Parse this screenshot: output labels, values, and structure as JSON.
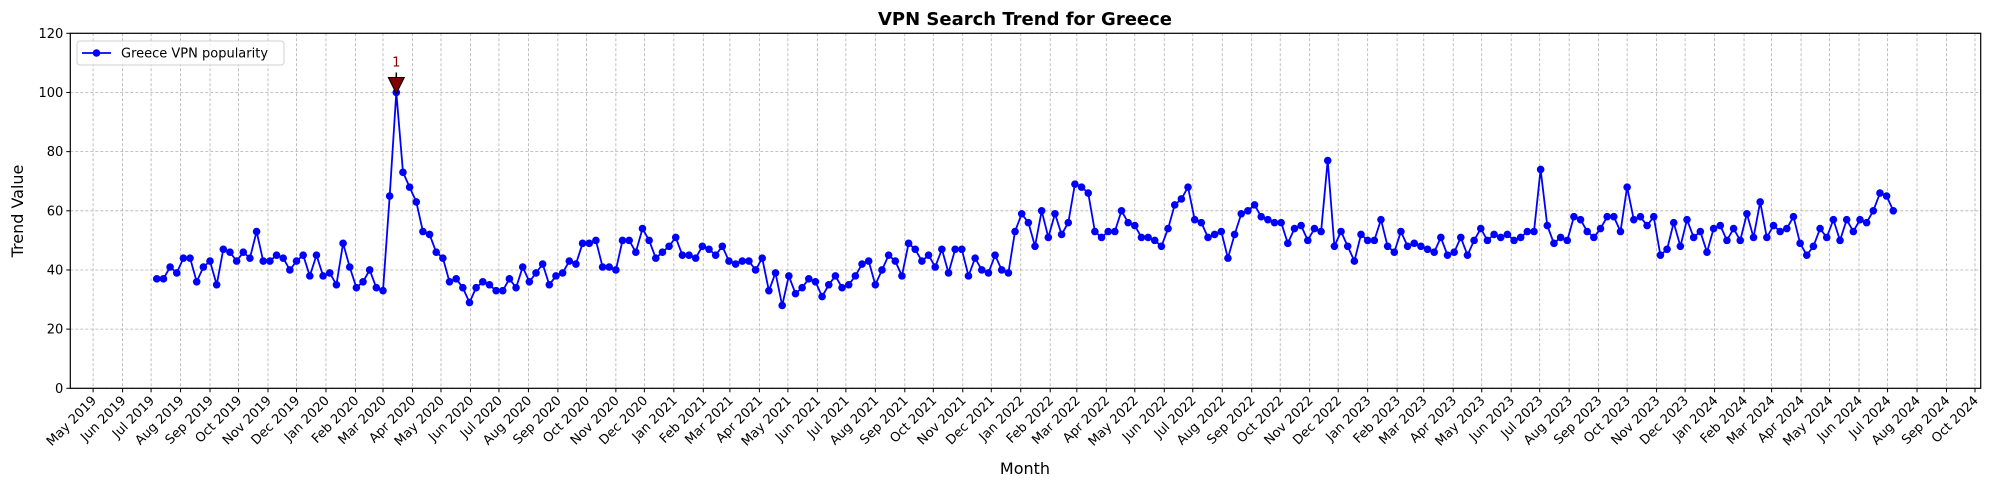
{
  "chart_data": {
    "type": "line",
    "title": "VPN Search Trend for Greece",
    "xlabel": "Month",
    "ylabel": "Trend Value",
    "ylim": [
      0,
      120
    ],
    "yticks": [
      0,
      20,
      40,
      60,
      80,
      100,
      120
    ],
    "xlim": [
      "2019-04-07",
      "2024-10-07"
    ],
    "grid": true,
    "legend_position": "top-left",
    "colors": {
      "series": "#0000ff",
      "annotation": "#8b0000"
    },
    "xticklabels": [
      "May 2019",
      "Jun 2019",
      "Jul 2019",
      "Aug 2019",
      "Sep 2019",
      "Oct 2019",
      "Nov 2019",
      "Dec 2019",
      "Jan 2020",
      "Feb 2020",
      "Mar 2020",
      "Apr 2020",
      "May 2020",
      "Jun 2020",
      "Jul 2020",
      "Aug 2020",
      "Sep 2020",
      "Oct 2020",
      "Nov 2020",
      "Dec 2020",
      "Jan 2021",
      "Feb 2021",
      "Mar 2021",
      "Apr 2021",
      "May 2021",
      "Jun 2021",
      "Jul 2021",
      "Aug 2021",
      "Sep 2021",
      "Oct 2021",
      "Nov 2021",
      "Dec 2021",
      "Jan 2022",
      "Feb 2022",
      "Mar 2022",
      "Apr 2022",
      "May 2022",
      "Jun 2022",
      "Jul 2022",
      "Aug 2022",
      "Sep 2022",
      "Oct 2022",
      "Nov 2022",
      "Dec 2022",
      "Jan 2023",
      "Feb 2023",
      "Mar 2023",
      "Apr 2023",
      "May 2023",
      "Jun 2023",
      "Jul 2023",
      "Aug 2023",
      "Sep 2023",
      "Oct 2023",
      "Nov 2023",
      "Dec 2023",
      "Jan 2024",
      "Feb 2024",
      "Mar 2024",
      "Apr 2024",
      "May 2024",
      "Jun 2024",
      "Jul 2024",
      "Aug 2024",
      "Sep 2024",
      "Oct 2024"
    ],
    "x": [
      "2019-07-07",
      "2019-07-14",
      "2019-07-21",
      "2019-07-28",
      "2019-08-04",
      "2019-08-11",
      "2019-08-18",
      "2019-08-25",
      "2019-09-01",
      "2019-09-08",
      "2019-09-15",
      "2019-09-22",
      "2019-09-29",
      "2019-10-06",
      "2019-10-13",
      "2019-10-20",
      "2019-10-27",
      "2019-11-03",
      "2019-11-10",
      "2019-11-17",
      "2019-11-24",
      "2019-12-01",
      "2019-12-08",
      "2019-12-15",
      "2019-12-22",
      "2019-12-29",
      "2020-01-05",
      "2020-01-12",
      "2020-01-19",
      "2020-01-26",
      "2020-02-02",
      "2020-02-09",
      "2020-02-16",
      "2020-02-23",
      "2020-03-01",
      "2020-03-08",
      "2020-03-15",
      "2020-03-22",
      "2020-03-29",
      "2020-04-05",
      "2020-04-12",
      "2020-04-19",
      "2020-04-26",
      "2020-05-03",
      "2020-05-10",
      "2020-05-17",
      "2020-05-24",
      "2020-05-31",
      "2020-06-07",
      "2020-06-14",
      "2020-06-21",
      "2020-06-28",
      "2020-07-05",
      "2020-07-12",
      "2020-07-19",
      "2020-07-26",
      "2020-08-02",
      "2020-08-09",
      "2020-08-16",
      "2020-08-23",
      "2020-08-30",
      "2020-09-06",
      "2020-09-13",
      "2020-09-20",
      "2020-09-27",
      "2020-10-04",
      "2020-10-11",
      "2020-10-18",
      "2020-10-25",
      "2020-11-01",
      "2020-11-08",
      "2020-11-15",
      "2020-11-22",
      "2020-11-29",
      "2020-12-06",
      "2020-12-13",
      "2020-12-20",
      "2020-12-27",
      "2021-01-03",
      "2021-01-10",
      "2021-01-17",
      "2021-01-24",
      "2021-01-31",
      "2021-02-07",
      "2021-02-14",
      "2021-02-21",
      "2021-02-28",
      "2021-03-07",
      "2021-03-14",
      "2021-03-21",
      "2021-03-28",
      "2021-04-04",
      "2021-04-11",
      "2021-04-18",
      "2021-04-25",
      "2021-05-02",
      "2021-05-09",
      "2021-05-16",
      "2021-05-23",
      "2021-05-30",
      "2021-06-06",
      "2021-06-13",
      "2021-06-20",
      "2021-06-27",
      "2021-07-04",
      "2021-07-11",
      "2021-07-18",
      "2021-07-25",
      "2021-08-01",
      "2021-08-08",
      "2021-08-15",
      "2021-08-22",
      "2021-08-29",
      "2021-09-05",
      "2021-09-12",
      "2021-09-19",
      "2021-09-26",
      "2021-10-03",
      "2021-10-10",
      "2021-10-17",
      "2021-10-24",
      "2021-10-31",
      "2021-11-07",
      "2021-11-14",
      "2021-11-21",
      "2021-11-28",
      "2021-12-05",
      "2021-12-12",
      "2021-12-19",
      "2021-12-26",
      "2022-01-02",
      "2022-01-09",
      "2022-01-16",
      "2022-01-23",
      "2022-01-30",
      "2022-02-06",
      "2022-02-13",
      "2022-02-20",
      "2022-02-27",
      "2022-03-06",
      "2022-03-13",
      "2022-03-20",
      "2022-03-27",
      "2022-04-03",
      "2022-04-10",
      "2022-04-17",
      "2022-04-24",
      "2022-05-01",
      "2022-05-08",
      "2022-05-15",
      "2022-05-22",
      "2022-05-29",
      "2022-06-05",
      "2022-06-12",
      "2022-06-19",
      "2022-06-26",
      "2022-07-03",
      "2022-07-10",
      "2022-07-17",
      "2022-07-24",
      "2022-07-31",
      "2022-08-07",
      "2022-08-14",
      "2022-08-21",
      "2022-08-28",
      "2022-09-04",
      "2022-09-11",
      "2022-09-18",
      "2022-09-25",
      "2022-10-02",
      "2022-10-09",
      "2022-10-16",
      "2022-10-23",
      "2022-10-30",
      "2022-11-06",
      "2022-11-13",
      "2022-11-20",
      "2022-11-27",
      "2022-12-04",
      "2022-12-11",
      "2022-12-18",
      "2022-12-25",
      "2023-01-01",
      "2023-01-08",
      "2023-01-15",
      "2023-01-22",
      "2023-01-29",
      "2023-02-05",
      "2023-02-12",
      "2023-02-19",
      "2023-02-26",
      "2023-03-05",
      "2023-03-12",
      "2023-03-19",
      "2023-03-26",
      "2023-04-02",
      "2023-04-09",
      "2023-04-16",
      "2023-04-23",
      "2023-04-30",
      "2023-05-07",
      "2023-05-14",
      "2023-05-21",
      "2023-05-28",
      "2023-06-04",
      "2023-06-11",
      "2023-06-18",
      "2023-06-25",
      "2023-07-02",
      "2023-07-09",
      "2023-07-16",
      "2023-07-23",
      "2023-07-30",
      "2023-08-06",
      "2023-08-13",
      "2023-08-20",
      "2023-08-27",
      "2023-09-03",
      "2023-09-10",
      "2023-09-17",
      "2023-09-24",
      "2023-10-01",
      "2023-10-08",
      "2023-10-15",
      "2023-10-22",
      "2023-10-29",
      "2023-11-05",
      "2023-11-12",
      "2023-11-19",
      "2023-11-26",
      "2023-12-03",
      "2023-12-10",
      "2023-12-17",
      "2023-12-24",
      "2023-12-31",
      "2024-01-07",
      "2024-01-14",
      "2024-01-21",
      "2024-01-28",
      "2024-02-04",
      "2024-02-11",
      "2024-02-18",
      "2024-02-25",
      "2024-03-03",
      "2024-03-10",
      "2024-03-17",
      "2024-03-24",
      "2024-03-31",
      "2024-04-07",
      "2024-04-14",
      "2024-04-21",
      "2024-04-28",
      "2024-05-05",
      "2024-05-12",
      "2024-05-19",
      "2024-05-26",
      "2024-06-02",
      "2024-06-09",
      "2024-06-16",
      "2024-06-23",
      "2024-06-30",
      "2024-07-07"
    ],
    "series": [
      {
        "name": "Greece VPN popularity",
        "values": [
          37,
          37,
          41,
          39,
          44,
          44,
          36,
          41,
          43,
          35,
          47,
          46,
          43,
          46,
          44,
          53,
          43,
          43,
          45,
          44,
          40,
          43,
          45,
          38,
          45,
          38,
          39,
          35,
          49,
          41,
          34,
          36,
          40,
          34,
          33,
          65,
          100,
          73,
          68,
          63,
          53,
          52,
          46,
          44,
          36,
          37,
          34,
          29,
          34,
          36,
          35,
          33,
          33,
          37,
          34,
          41,
          36,
          39,
          42,
          35,
          38,
          39,
          43,
          42,
          49,
          49,
          50,
          41,
          41,
          40,
          50,
          50,
          46,
          54,
          50,
          44,
          46,
          48,
          51,
          45,
          45,
          44,
          48,
          47,
          45,
          48,
          43,
          42,
          43,
          43,
          40,
          44,
          33,
          39,
          28,
          38,
          32,
          34,
          37,
          36,
          31,
          35,
          38,
          34,
          35,
          38,
          42,
          43,
          35,
          40,
          45,
          43,
          38,
          49,
          47,
          43,
          45,
          41,
          47,
          39,
          47,
          47,
          38,
          44,
          40,
          39,
          45,
          40,
          39,
          53,
          59,
          56,
          48,
          60,
          51,
          59,
          52,
          56,
          69,
          68,
          66,
          53,
          51,
          53,
          53,
          60,
          56,
          55,
          51,
          51,
          50,
          48,
          54,
          62,
          64,
          68,
          57,
          56,
          51,
          52,
          53,
          44,
          52,
          59,
          60,
          62,
          58,
          57,
          56,
          56,
          49,
          54,
          55,
          50,
          54,
          53,
          77,
          48,
          53,
          48,
          43,
          52,
          50,
          50,
          57,
          48,
          46,
          53,
          48,
          49,
          48,
          47,
          46,
          51,
          45,
          46,
          51,
          45,
          50,
          54,
          50,
          52,
          51,
          52,
          50,
          51,
          53,
          53,
          74,
          55,
          49,
          51,
          50,
          58,
          57,
          53,
          51,
          54,
          58,
          58,
          53,
          68,
          57,
          58,
          55,
          58,
          45,
          47,
          56,
          48,
          57,
          51,
          53,
          46,
          54,
          55,
          50,
          54,
          50,
          59,
          51,
          63,
          51,
          55,
          53,
          54,
          58,
          49,
          45,
          48,
          54,
          51,
          57,
          50,
          57,
          53,
          57,
          56,
          60,
          66,
          65,
          60
        ]
      }
    ],
    "annotations": [
      {
        "label": "1",
        "x": "2020-03-15",
        "y": 100,
        "marker": "triangle-down"
      }
    ]
  }
}
